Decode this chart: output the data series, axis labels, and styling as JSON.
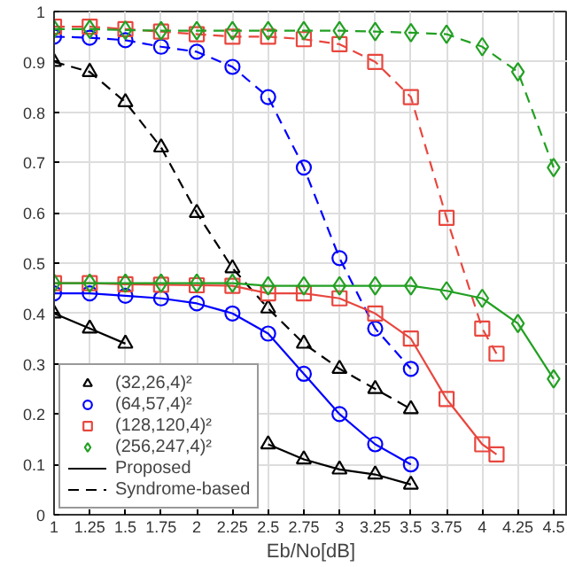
{
  "chart_data": {
    "type": "line",
    "xlabel": "Eb/No[dB]",
    "x": [
      1,
      1.25,
      1.5,
      1.75,
      2,
      2.25,
      2.5,
      2.75,
      3,
      3.25,
      3.5
    ],
    "series": [
      {
        "color": "#000000",
        "marker": "triangle",
        "line_style": "dashed",
        "values": [
          0.9,
          0.88,
          0.82,
          0.73,
          0.6,
          0.49,
          0.41,
          0.34,
          0.29,
          0.25,
          0.21
        ]
      },
      {
        "name": "(32,26,4)²",
        "color": "#000000",
        "marker": "triangle",
        "line_style": "solid",
        "values": [
          0.4,
          0.37,
          0.34,
          null,
          null,
          null,
          0.14,
          0.11,
          0.09,
          0.08,
          0.06
        ]
      },
      {
        "color": "#0000ff",
        "marker": "circle",
        "line_style": "dashed",
        "values": [
          0.95,
          0.948,
          0.943,
          0.93,
          0.92,
          0.89,
          0.83,
          0.69,
          0.51,
          0.37,
          0.29
        ]
      },
      {
        "name": "(64,57,4)²",
        "color": "#0000ff",
        "marker": "circle",
        "line_style": "solid",
        "values": [
          0.44,
          0.44,
          0.435,
          0.43,
          0.42,
          0.4,
          0.36,
          0.28,
          0.2,
          0.14,
          0.1
        ]
      },
      {
        "color": "#e8473f",
        "marker": "square",
        "line_style": "dashed",
        "x": [
          1,
          1.25,
          1.5,
          1.75,
          2,
          2.25,
          2.5,
          2.75,
          3,
          3.25,
          3.5,
          3.75,
          4,
          4.1
        ],
        "values": [
          0.97,
          0.97,
          0.965,
          0.96,
          0.955,
          0.95,
          0.95,
          0.945,
          0.935,
          0.9,
          0.83,
          0.59,
          0.37,
          0.32
        ]
      },
      {
        "name": "(128,120,4)²",
        "color": "#e8473f",
        "marker": "square",
        "line_style": "solid",
        "x": [
          1,
          1.25,
          1.5,
          1.75,
          2,
          2.25,
          2.5,
          2.75,
          3,
          3.25,
          3.5,
          3.75,
          4,
          4.1
        ],
        "values": [
          0.46,
          0.46,
          0.458,
          0.457,
          0.456,
          0.455,
          0.44,
          0.44,
          0.43,
          0.4,
          0.35,
          0.23,
          0.14,
          0.12
        ]
      },
      {
        "color": "#22a022",
        "marker": "diamond",
        "line_style": "dashed",
        "x": [
          1,
          1.25,
          1.5,
          1.75,
          2,
          2.25,
          2.5,
          2.75,
          3,
          3.25,
          3.5,
          3.75,
          4,
          4.25,
          4.5
        ],
        "values": [
          0.965,
          0.965,
          0.963,
          0.962,
          0.962,
          0.962,
          0.962,
          0.962,
          0.962,
          0.96,
          0.958,
          0.955,
          0.93,
          0.88,
          0.69
        ]
      },
      {
        "name": "(256,247,4)²",
        "color": "#22a022",
        "marker": "diamond",
        "line_style": "solid",
        "x": [
          1,
          1.25,
          1.5,
          1.75,
          2,
          2.25,
          2.5,
          2.75,
          3,
          3.25,
          3.5,
          3.75,
          4,
          4.25,
          4.5
        ],
        "values": [
          0.46,
          0.46,
          0.46,
          0.46,
          0.46,
          0.46,
          0.455,
          0.455,
          0.455,
          0.455,
          0.455,
          0.445,
          0.43,
          0.38,
          0.27
        ]
      },
      {
        "name": "Proposed",
        "color": "#000000",
        "marker": "none",
        "line_style": "solid",
        "values": [
          null,
          null,
          null,
          null,
          null,
          null,
          null,
          null,
          null,
          null,
          null
        ]
      },
      {
        "name": "Syndrome-based",
        "color": "#000000",
        "marker": "none",
        "line_style": "dashed",
        "values": [
          null,
          null,
          null,
          null,
          null,
          null,
          null,
          null,
          null,
          null,
          null
        ]
      }
    ],
    "xlim": [
      1,
      4.6
    ],
    "ylim": [
      0,
      1
    ],
    "xticks": [
      1,
      1.25,
      1.5,
      1.75,
      2,
      2.25,
      2.5,
      2.75,
      3,
      3.25,
      3.5,
      3.75,
      4,
      4.25,
      4.5
    ],
    "yticks": [
      0,
      0.1,
      0.2,
      0.3,
      0.4,
      0.5,
      0.6,
      0.7,
      0.8,
      0.9,
      1
    ],
    "grid": true,
    "legend": "bottom left"
  }
}
